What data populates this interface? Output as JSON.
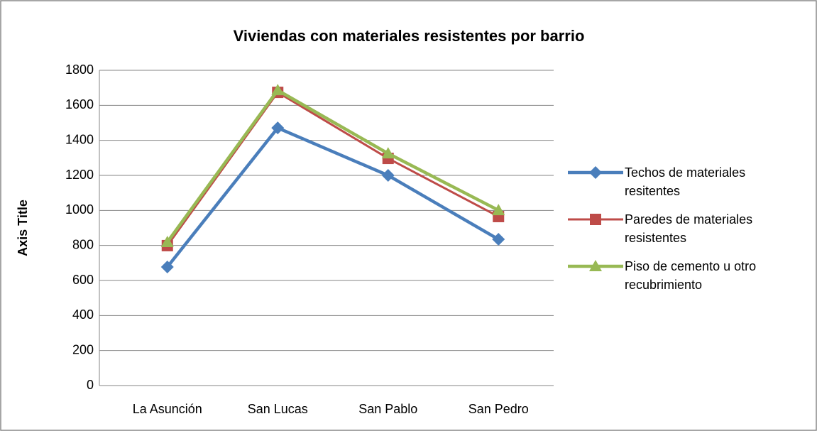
{
  "chart_data": {
    "type": "line",
    "title": "Viviendas con materiales resistentes por barrio",
    "y_label": "Axis Title",
    "categories": [
      "La Asunción",
      "San Lucas",
      "San Pablo",
      "San Pedro"
    ],
    "series": [
      {
        "name": "Techos de materiales resitentes",
        "color": "#4a7ebb",
        "marker": "diamond",
        "values": [
          677,
          1471,
          1200,
          835
        ]
      },
      {
        "name": "Paredes de materiales resistentes",
        "color": "#be4b48",
        "marker": "square",
        "values": [
          799,
          1674,
          1297,
          965
        ]
      },
      {
        "name": "Piso de cemento u otro recubrimiento",
        "color": "#98b954",
        "marker": "triangle",
        "values": [
          819,
          1686,
          1325,
          1001
        ]
      }
    ],
    "ylim": [
      0,
      1800
    ],
    "yticks": [
      0,
      200,
      400,
      600,
      800,
      1000,
      1200,
      1400,
      1600,
      1800
    ],
    "grid": true,
    "legend": "right"
  }
}
